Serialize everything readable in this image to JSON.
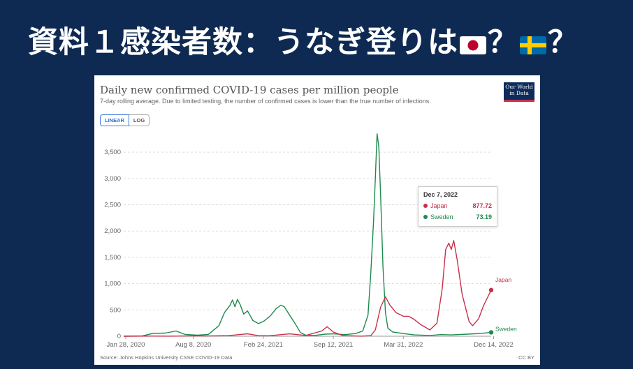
{
  "slide": {
    "title_main": "資料１感染者数：うなぎ登りは",
    "title_q1": "？",
    "title_q2": "？"
  },
  "chart_header": {
    "title": "Daily new confirmed COVID-19 cases per million people",
    "subtitle": "7-day rolling average. Due to limited testing, the number of confirmed cases is lower than the true number of infections.",
    "logo_line1": "Our World",
    "logo_line2": "in Data",
    "toggle_linear": "LINEAR",
    "toggle_log": "LOG",
    "source": "Source: Johns Hopkins University CSSE COVID-19 Data",
    "license": "CC BY"
  },
  "tooltip": {
    "date": "Dec 7, 2022",
    "japan_label": "Japan",
    "japan_value": "877.72",
    "sweden_label": "Sweden",
    "sweden_value": "73.19"
  },
  "colors": {
    "japan": "#c8304a",
    "sweden": "#1e8a4e",
    "background": "#0f2a52"
  },
  "chart_data": {
    "type": "line",
    "title": "Daily new confirmed COVID-19 cases per million people",
    "ylim": [
      0,
      3900
    ],
    "yticks": [
      0,
      500,
      1000,
      1500,
      2000,
      2500,
      3000,
      3500
    ],
    "ytick_labels": [
      "0",
      "500",
      "1,000",
      "1,500",
      "2,000",
      "2,500",
      "3,000",
      "3,500"
    ],
    "xlim": [
      "2020-01-22",
      "2022-12-07"
    ],
    "xticks": [
      "2020-01-28",
      "2020-08-08",
      "2021-02-24",
      "2021-09-12",
      "2022-03-31",
      "2022-12-14"
    ],
    "xtick_labels": [
      "Jan 28, 2020",
      "Aug 8, 2020",
      "Feb 24, 2021",
      "Sep 12, 2021",
      "Mar 31, 2022",
      "Dec 14, 2022"
    ],
    "grid": "horizontal dashed",
    "series": [
      {
        "name": "Sweden",
        "color": "#1e8a4e",
        "points": [
          [
            "2020-01-22",
            0
          ],
          [
            "2020-03-15",
            5
          ],
          [
            "2020-04-15",
            55
          ],
          [
            "2020-05-20",
            60
          ],
          [
            "2020-06-20",
            100
          ],
          [
            "2020-07-15",
            35
          ],
          [
            "2020-08-20",
            20
          ],
          [
            "2020-09-20",
            35
          ],
          [
            "2020-10-20",
            200
          ],
          [
            "2020-11-05",
            450
          ],
          [
            "2020-11-20",
            580
          ],
          [
            "2020-11-28",
            690
          ],
          [
            "2020-12-05",
            560
          ],
          [
            "2020-12-12",
            700
          ],
          [
            "2020-12-20",
            600
          ],
          [
            "2020-12-30",
            420
          ],
          [
            "2021-01-10",
            480
          ],
          [
            "2021-01-25",
            300
          ],
          [
            "2021-02-10",
            240
          ],
          [
            "2021-02-24",
            280
          ],
          [
            "2021-03-15",
            380
          ],
          [
            "2021-04-01",
            520
          ],
          [
            "2021-04-15",
            590
          ],
          [
            "2021-04-25",
            560
          ],
          [
            "2021-05-10",
            400
          ],
          [
            "2021-05-25",
            250
          ],
          [
            "2021-06-10",
            70
          ],
          [
            "2021-06-25",
            20
          ],
          [
            "2021-07-20",
            15
          ],
          [
            "2021-08-20",
            40
          ],
          [
            "2021-09-12",
            45
          ],
          [
            "2021-10-15",
            30
          ],
          [
            "2021-11-15",
            50
          ],
          [
            "2021-12-05",
            100
          ],
          [
            "2021-12-20",
            400
          ],
          [
            "2021-12-28",
            1200
          ],
          [
            "2022-01-05",
            2200
          ],
          [
            "2022-01-10",
            3000
          ],
          [
            "2022-01-15",
            3850
          ],
          [
            "2022-01-20",
            3600
          ],
          [
            "2022-01-25",
            2700
          ],
          [
            "2022-02-01",
            1300
          ],
          [
            "2022-02-08",
            450
          ],
          [
            "2022-02-15",
            150
          ],
          [
            "2022-03-01",
            80
          ],
          [
            "2022-03-31",
            50
          ],
          [
            "2022-05-01",
            25
          ],
          [
            "2022-06-15",
            15
          ],
          [
            "2022-07-15",
            30
          ],
          [
            "2022-08-15",
            25
          ],
          [
            "2022-10-01",
            40
          ],
          [
            "2022-11-10",
            55
          ],
          [
            "2022-12-07",
            73.19
          ]
        ]
      },
      {
        "name": "Japan",
        "color": "#c8304a",
        "points": [
          [
            "2020-01-22",
            0
          ],
          [
            "2020-04-10",
            3
          ],
          [
            "2020-06-01",
            1
          ],
          [
            "2020-07-15",
            4
          ],
          [
            "2020-08-05",
            8
          ],
          [
            "2020-09-15",
            4
          ],
          [
            "2020-11-15",
            10
          ],
          [
            "2021-01-10",
            45
          ],
          [
            "2021-02-10",
            10
          ],
          [
            "2021-03-10",
            8
          ],
          [
            "2021-05-10",
            45
          ],
          [
            "2021-06-25",
            15
          ],
          [
            "2021-08-10",
            100
          ],
          [
            "2021-08-25",
            180
          ],
          [
            "2021-09-12",
            80
          ],
          [
            "2021-10-10",
            10
          ],
          [
            "2021-12-01",
            1
          ],
          [
            "2021-12-28",
            10
          ],
          [
            "2022-01-10",
            120
          ],
          [
            "2022-01-25",
            550
          ],
          [
            "2022-02-08",
            750
          ],
          [
            "2022-02-20",
            600
          ],
          [
            "2022-03-10",
            450
          ],
          [
            "2022-03-31",
            380
          ],
          [
            "2022-04-15",
            380
          ],
          [
            "2022-05-01",
            320
          ],
          [
            "2022-05-20",
            220
          ],
          [
            "2022-06-15",
            120
          ],
          [
            "2022-07-05",
            250
          ],
          [
            "2022-07-20",
            900
          ],
          [
            "2022-07-30",
            1650
          ],
          [
            "2022-08-08",
            1770
          ],
          [
            "2022-08-15",
            1650
          ],
          [
            "2022-08-22",
            1820
          ],
          [
            "2022-09-01",
            1450
          ],
          [
            "2022-09-15",
            800
          ],
          [
            "2022-10-05",
            280
          ],
          [
            "2022-10-15",
            200
          ],
          [
            "2022-11-01",
            330
          ],
          [
            "2022-11-15",
            580
          ],
          [
            "2022-12-07",
            877.72
          ]
        ]
      }
    ]
  }
}
